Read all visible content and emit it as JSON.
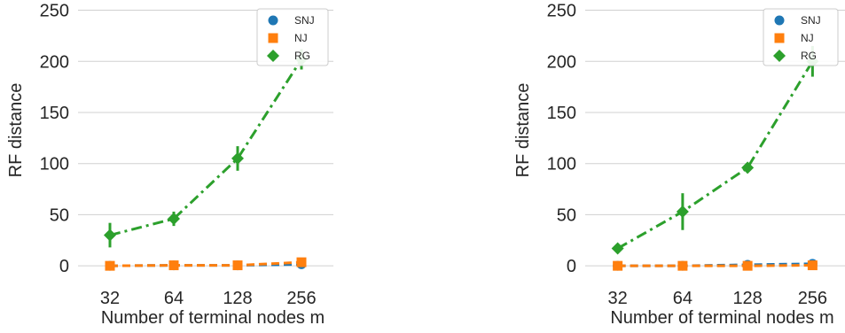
{
  "colors": {
    "SNJ": "#1f77b4",
    "NJ": "#ff7f0e",
    "RG": "#2ca02c",
    "grid": "#d0d0d0",
    "text": "#262626"
  },
  "chart_data": [
    {
      "type": "line",
      "xlabel": "Number of terminal nodes m",
      "ylabel": "RF distance",
      "categories": [
        "32",
        "64",
        "128",
        "256"
      ],
      "ylim": [
        -12,
        260
      ],
      "yticks": [
        0,
        50,
        100,
        150,
        200,
        250
      ],
      "grid": "horizontal",
      "legend": {
        "placement": "top-right",
        "entries": [
          "SNJ",
          "NJ",
          "RG"
        ]
      },
      "series": [
        {
          "name": "SNJ",
          "marker": "circle",
          "linestyle": "dashed",
          "values": [
            0,
            0.5,
            0.5,
            1.5
          ],
          "err": [
            0,
            0,
            0,
            0
          ]
        },
        {
          "name": "NJ",
          "marker": "square",
          "linestyle": "dashed",
          "values": [
            0,
            0.5,
            0.5,
            3.5
          ],
          "err": [
            0,
            0,
            0,
            1.5
          ]
        },
        {
          "name": "RG",
          "marker": "diamond",
          "linestyle": "dashdot",
          "values": [
            30,
            46,
            105,
            202
          ],
          "err": [
            12,
            7,
            12,
            10
          ]
        }
      ]
    },
    {
      "type": "line",
      "xlabel": "Number of terminal nodes m",
      "ylabel": "RF distance",
      "categories": [
        "32",
        "64",
        "128",
        "256"
      ],
      "ylim": [
        -12,
        260
      ],
      "yticks": [
        0,
        50,
        100,
        150,
        200,
        250
      ],
      "grid": "horizontal",
      "legend": {
        "placement": "top-right",
        "entries": [
          "SNJ",
          "NJ",
          "RG"
        ]
      },
      "series": [
        {
          "name": "SNJ",
          "marker": "circle",
          "linestyle": "dashed",
          "values": [
            0,
            0,
            1,
            2
          ],
          "err": [
            0,
            0,
            0,
            0
          ]
        },
        {
          "name": "NJ",
          "marker": "square",
          "linestyle": "dashed",
          "values": [
            0,
            0,
            0,
            0.5
          ],
          "err": [
            0,
            0,
            0,
            0
          ]
        },
        {
          "name": "RG",
          "marker": "diamond",
          "linestyle": "dashdot",
          "values": [
            17,
            53,
            96,
            200
          ],
          "err": [
            0,
            18,
            3,
            15
          ]
        }
      ]
    }
  ]
}
